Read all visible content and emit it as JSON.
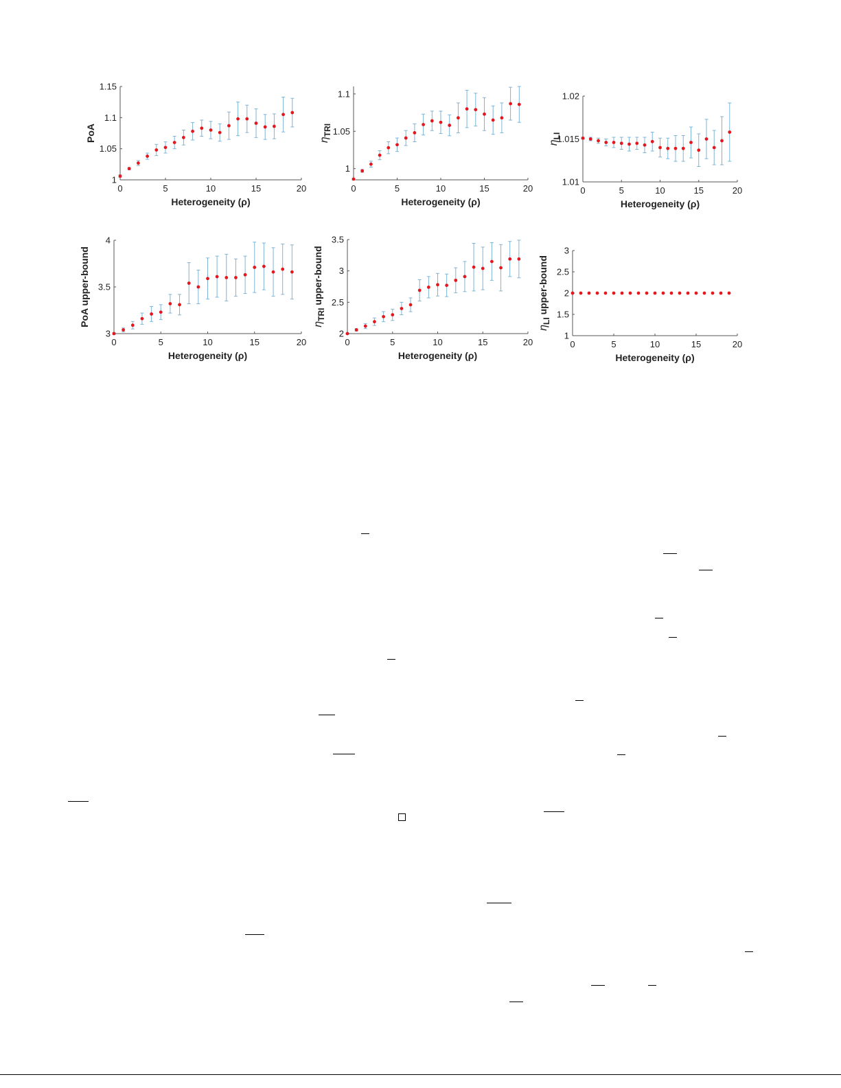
{
  "colors": {
    "marker": "#e3181f",
    "errorbar": "#7db4d6",
    "axis": "#555555",
    "text": "#222222"
  },
  "chart_data": [
    {
      "type": "scatter",
      "title": "",
      "xlabel": "Heterogeneity (ρ)",
      "ylabel": "PoA",
      "ylabel_sub": "",
      "ylabel_rest": "",
      "xlim": [
        0,
        20
      ],
      "ylim": [
        1,
        1.15
      ],
      "xticks": [
        "0",
        "5",
        "10",
        "15",
        "20"
      ],
      "yticks": [
        "1",
        "1.05",
        "1.1",
        "1.15"
      ],
      "x": [
        0,
        1,
        2,
        3,
        4,
        5,
        6,
        7,
        8,
        9,
        10,
        11,
        12,
        13,
        14,
        15,
        16,
        17,
        18,
        19
      ],
      "values": [
        1.006,
        1.018,
        1.027,
        1.038,
        1.048,
        1.052,
        1.06,
        1.068,
        1.078,
        1.083,
        1.08,
        1.076,
        1.087,
        1.098,
        1.098,
        1.091,
        1.085,
        1.086,
        1.105,
        1.108
      ],
      "err": [
        0.002,
        0.002,
        0.004,
        0.005,
        0.009,
        0.009,
        0.01,
        0.012,
        0.014,
        0.013,
        0.014,
        0.014,
        0.022,
        0.027,
        0.022,
        0.023,
        0.02,
        0.02,
        0.028,
        0.023
      ]
    },
    {
      "type": "scatter",
      "title": "",
      "xlabel": "Heterogeneity (ρ)",
      "ylabel": "η",
      "ylabel_sub": "TRI",
      "ylabel_rest": "",
      "xlim": [
        0,
        20
      ],
      "ylim": [
        0.985,
        1.11
      ],
      "xticks": [
        "0",
        "5",
        "10",
        "15",
        "20"
      ],
      "yticks": [
        "1",
        "1.05",
        "1.1"
      ],
      "x": [
        0,
        1,
        2,
        3,
        4,
        5,
        6,
        7,
        8,
        9,
        10,
        11,
        12,
        13,
        14,
        15,
        16,
        17,
        18,
        19
      ],
      "values": [
        0.986,
        0.997,
        1.006,
        1.018,
        1.028,
        1.032,
        1.041,
        1.048,
        1.059,
        1.064,
        1.062,
        1.058,
        1.068,
        1.08,
        1.079,
        1.073,
        1.065,
        1.068,
        1.087,
        1.086
      ],
      "err": [
        0.001,
        0.002,
        0.004,
        0.006,
        0.008,
        0.009,
        0.01,
        0.012,
        0.014,
        0.013,
        0.015,
        0.014,
        0.02,
        0.025,
        0.022,
        0.022,
        0.019,
        0.02,
        0.022,
        0.024
      ]
    },
    {
      "type": "scatter",
      "title": "",
      "xlabel": "Heterogeneity (ρ)",
      "ylabel": "η",
      "ylabel_sub": "LI",
      "ylabel_rest": "",
      "xlim": [
        0,
        20
      ],
      "ylim": [
        1.01,
        1.02
      ],
      "xticks": [
        "0",
        "5",
        "10",
        "15",
        "20"
      ],
      "yticks": [
        "1.01",
        "1.015",
        "1.02"
      ],
      "x": [
        0,
        1,
        2,
        3,
        4,
        5,
        6,
        7,
        8,
        9,
        10,
        11,
        12,
        13,
        14,
        15,
        16,
        17,
        18,
        19
      ],
      "values": [
        1.0151,
        1.015,
        1.0148,
        1.0146,
        1.0146,
        1.0145,
        1.0144,
        1.0145,
        1.0143,
        1.0147,
        1.014,
        1.0139,
        1.0139,
        1.0139,
        1.0146,
        1.0137,
        1.015,
        1.014,
        1.0148,
        1.0158
      ],
      "err": [
        0.0001,
        0.0002,
        0.0003,
        0.0004,
        0.0006,
        0.0007,
        0.0008,
        0.0007,
        0.0009,
        0.0011,
        0.0011,
        0.0012,
        0.0015,
        0.0015,
        0.0018,
        0.0019,
        0.0023,
        0.002,
        0.0028,
        0.0034
      ]
    },
    {
      "type": "scatter",
      "title": "",
      "xlabel": "Heterogeneity (ρ)",
      "ylabel": "PoA upper-bound",
      "ylabel_sub": "",
      "ylabel_rest": "",
      "xlim": [
        0,
        20
      ],
      "ylim": [
        3,
        4
      ],
      "xticks": [
        "0",
        "5",
        "10",
        "15",
        "20"
      ],
      "yticks": [
        "3",
        "3.5",
        "4"
      ],
      "x": [
        0,
        1,
        2,
        3,
        4,
        5,
        6,
        7,
        8,
        9,
        10,
        11,
        12,
        13,
        14,
        15,
        16,
        17,
        18,
        19
      ],
      "values": [
        3.0,
        3.04,
        3.09,
        3.16,
        3.21,
        3.23,
        3.32,
        3.31,
        3.54,
        3.5,
        3.59,
        3.61,
        3.6,
        3.6,
        3.63,
        3.71,
        3.72,
        3.66,
        3.69,
        3.66
      ],
      "err": [
        0.01,
        0.02,
        0.04,
        0.06,
        0.08,
        0.08,
        0.1,
        0.11,
        0.22,
        0.18,
        0.22,
        0.22,
        0.25,
        0.2,
        0.2,
        0.27,
        0.25,
        0.26,
        0.27,
        0.29
      ]
    },
    {
      "type": "scatter",
      "title": "",
      "xlabel": "Heterogeneity (ρ)",
      "ylabel": "η",
      "ylabel_sub": "TRI",
      "ylabel_rest": " upper-bound",
      "xlim": [
        0,
        20
      ],
      "ylim": [
        2,
        3.5
      ],
      "xticks": [
        "0",
        "5",
        "10",
        "15",
        "20"
      ],
      "yticks": [
        "2",
        "2.5",
        "3",
        "3.5"
      ],
      "x": [
        0,
        1,
        2,
        3,
        4,
        5,
        6,
        7,
        8,
        9,
        10,
        11,
        12,
        13,
        14,
        15,
        16,
        17,
        18,
        19
      ],
      "values": [
        2.0,
        2.06,
        2.12,
        2.19,
        2.27,
        2.3,
        2.4,
        2.46,
        2.69,
        2.74,
        2.78,
        2.77,
        2.85,
        2.91,
        3.06,
        3.04,
        3.15,
        3.05,
        3.19,
        3.19
      ],
      "err": [
        0.01,
        0.02,
        0.04,
        0.06,
        0.08,
        0.09,
        0.1,
        0.11,
        0.17,
        0.17,
        0.18,
        0.18,
        0.2,
        0.24,
        0.38,
        0.34,
        0.3,
        0.37,
        0.28,
        0.3
      ]
    },
    {
      "type": "scatter",
      "title": "",
      "xlabel": "Heterogeneity (ρ)",
      "ylabel": "η",
      "ylabel_sub": "LI",
      "ylabel_rest": " upper-bound",
      "xlim": [
        0,
        20
      ],
      "ylim": [
        1,
        3
      ],
      "xticks": [
        "0",
        "5",
        "10",
        "15",
        "20"
      ],
      "yticks": [
        "1",
        "1.5",
        "2",
        "2.5",
        "3"
      ],
      "x": [
        0,
        1,
        2,
        3,
        4,
        5,
        6,
        7,
        8,
        9,
        10,
        11,
        12,
        13,
        14,
        15,
        16,
        17,
        18,
        19
      ],
      "values": [
        2,
        2,
        2,
        2,
        2,
        2,
        2,
        2,
        2,
        2,
        2,
        2,
        2,
        2,
        2,
        2,
        2,
        2,
        2,
        2
      ],
      "err": [
        0,
        0,
        0,
        0,
        0,
        0,
        0,
        0,
        0,
        0,
        0,
        0,
        0,
        0,
        0,
        0,
        0,
        0,
        0,
        0
      ]
    }
  ]
}
